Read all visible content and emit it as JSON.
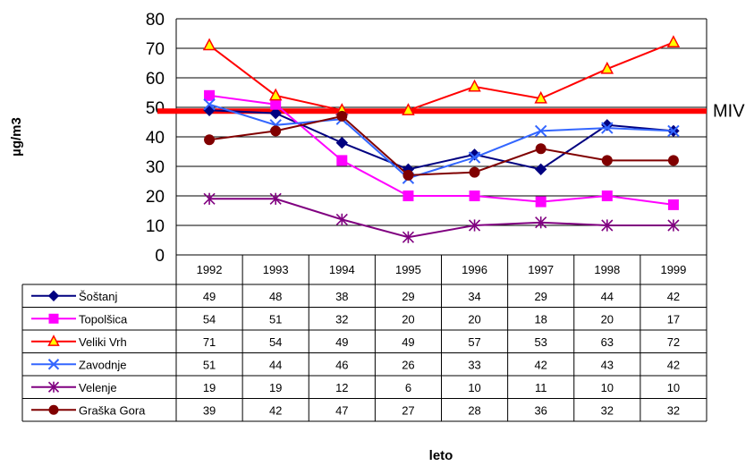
{
  "chart_data": {
    "type": "line",
    "title": "",
    "xlabel": "leto",
    "ylabel": "µg/m3",
    "ylim": [
      0,
      80
    ],
    "y_ticks": [
      "0",
      "10",
      "20",
      "30",
      "40",
      "50",
      "60",
      "70",
      "80"
    ],
    "categories": [
      "1992",
      "1993",
      "1994",
      "1995",
      "1996",
      "1997",
      "1998",
      "1999"
    ],
    "grid": "horizontal",
    "legend": "data table below plot",
    "reference_line": {
      "label": "MIV",
      "value": 49,
      "color": "#ff0000"
    },
    "series": [
      {
        "name": "Šoštanj",
        "values": [
          49,
          48,
          38,
          29,
          34,
          29,
          44,
          42
        ],
        "color": "#000080",
        "marker": "diamond"
      },
      {
        "name": "Topolšica",
        "values": [
          54,
          51,
          32,
          20,
          20,
          18,
          20,
          17
        ],
        "color": "#ff00ff",
        "marker": "square"
      },
      {
        "name": "Veliki Vrh",
        "values": [
          71,
          54,
          49,
          49,
          57,
          53,
          63,
          72
        ],
        "color": "#ff0000",
        "marker": "triangle"
      },
      {
        "name": "Zavodnje",
        "values": [
          51,
          44,
          46,
          26,
          33,
          42,
          43,
          42
        ],
        "color": "#3366ff",
        "marker": "x"
      },
      {
        "name": "Velenje",
        "values": [
          19,
          19,
          12,
          6,
          10,
          11,
          10,
          10
        ],
        "color": "#800080",
        "marker": "star"
      },
      {
        "name": "Graška Gora",
        "values": [
          39,
          42,
          47,
          27,
          28,
          36,
          32,
          32
        ],
        "color": "#800000",
        "marker": "circle"
      }
    ]
  }
}
